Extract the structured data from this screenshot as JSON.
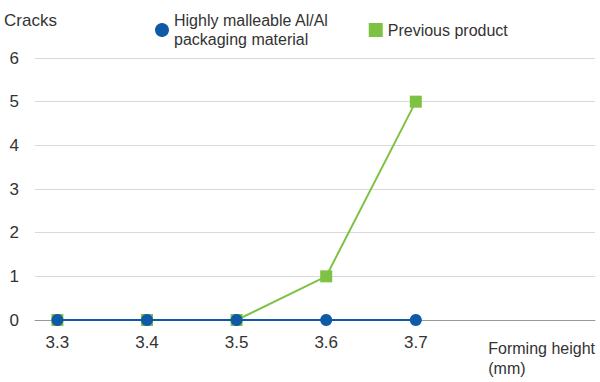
{
  "chart_data": {
    "type": "line",
    "y_label": "Cracks",
    "x_label": "Forming height\n(mm)",
    "x": [
      3.3,
      3.4,
      3.5,
      3.6,
      3.7
    ],
    "xlim": [
      3.275,
      3.9
    ],
    "xticks": [
      3.3,
      3.4,
      3.5,
      3.6,
      3.7
    ],
    "ylim": [
      0,
      6
    ],
    "yticks": [
      0,
      1,
      2,
      3,
      4,
      5,
      6
    ],
    "grid": true,
    "legend": "top",
    "series": [
      {
        "name": "Highly malleable Al/Al\npackaging material",
        "color": "#0e5aa7",
        "marker": "circle",
        "values": [
          0,
          0,
          0,
          0,
          0
        ]
      },
      {
        "name": "Previous product",
        "color": "#7dc242",
        "marker": "square",
        "values": [
          0,
          0,
          0,
          1,
          5
        ]
      }
    ]
  }
}
